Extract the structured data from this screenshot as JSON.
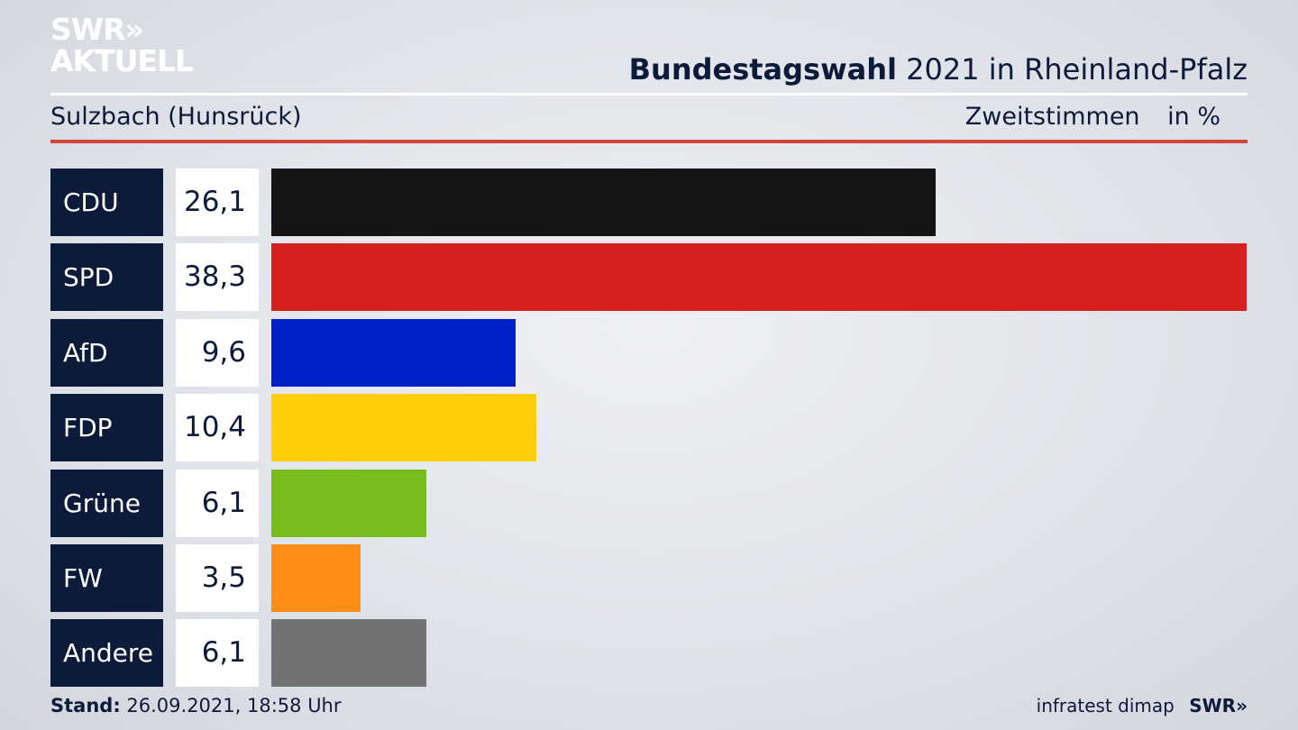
{
  "logo": {
    "line1": "SWR»",
    "line2": "AKTUELL"
  },
  "header": {
    "title_bold": "Bundestagswahl",
    "title_rest": "2021 in Rheinland-Pfalz",
    "subtitle": "Sulzbach (Hunsrück)",
    "measure": "Zweitstimmen",
    "unit": "in %"
  },
  "footer": {
    "stand_label": "Stand:",
    "stand_value": "26.09.2021, 18:58 Uhr",
    "source": "infratest dimap",
    "brand": "SWR»"
  },
  "chart_data": {
    "type": "bar",
    "orientation": "horizontal",
    "categories": [
      "CDU",
      "SPD",
      "AfD",
      "FDP",
      "Grüne",
      "FW",
      "Andere"
    ],
    "values": [
      26.1,
      38.3,
      9.6,
      10.4,
      6.1,
      3.5,
      6.1
    ],
    "value_labels": [
      "26,1",
      "38,3",
      "9,6",
      "10,4",
      "6,1",
      "3,5",
      "6,1"
    ],
    "colors": [
      "#141414",
      "#d71f1f",
      "#0021c8",
      "#ffcc0a",
      "#77bd1e",
      "#ff8c17",
      "#737373"
    ],
    "xlim": [
      0,
      38.3
    ]
  }
}
